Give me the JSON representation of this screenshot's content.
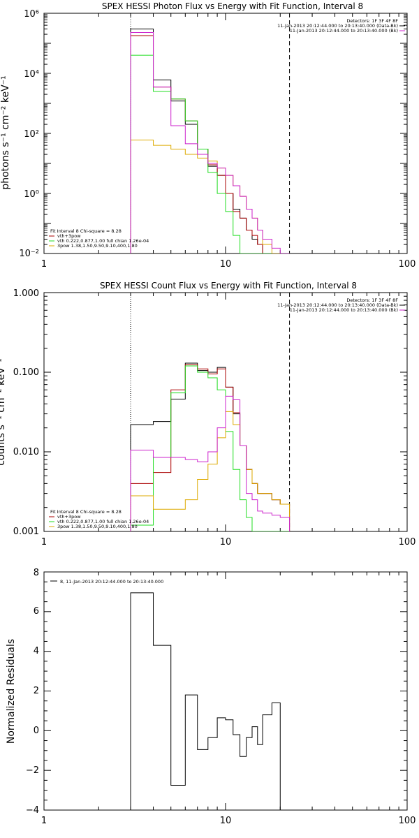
{
  "colors": {
    "data": "#000000",
    "total": "#aa0000",
    "thermal": "#22dd22",
    "powerlaw": "#ddaa00",
    "background": "#cc22cc",
    "axis": "#000000"
  },
  "chart_data": [
    {
      "type": "line",
      "title": "SPEX HESSI Photon Flux vs Energy with Fit Function, Interval 8",
      "xlabel": "",
      "ylabel": "photons s⁻¹ cm⁻² keV⁻¹",
      "xscale": "log",
      "yscale": "log",
      "xlim": [
        1,
        100
      ],
      "ylim": [
        0.01,
        1000000
      ],
      "xticks": [
        "1",
        "10",
        "100"
      ],
      "yticks": [
        "10⁻²",
        "10⁰",
        "10²",
        "10⁴",
        "10⁶"
      ],
      "vlines": [
        {
          "x": 3,
          "style": "dotted"
        },
        {
          "x": 22.5,
          "style": "dashed"
        }
      ],
      "legend_top": {
        "header": "Detectors: 1F 3F 4F 8F",
        "lines": [
          "11-Jan-2013 20:12:44.000 to 20:13:40.000 (Data-Bk)",
          "11-Jan-2013 20:12:44.000 to 20:13:40.000 (Bk)"
        ]
      },
      "legend_bottom": {
        "header": "Fit Interval 8   Chi-square = 8.28",
        "lines": [
          "vth+3pow",
          "vth 0.222,0.877,1.00  full chian 1.26e-04",
          "3pow 1.38,1.50,9.50,9.10,400,1.80"
        ]
      },
      "bin_edges": [
        3,
        3.5,
        4,
        5,
        6,
        7,
        8,
        9,
        10,
        11,
        12,
        13,
        14,
        15,
        16,
        18,
        20,
        22.5
      ],
      "series": [
        {
          "key": "data",
          "values": [
            300000,
            300000,
            6000,
            1200,
            200,
            30,
            8,
            4,
            1,
            0.3,
            0.15,
            0.06,
            0.03,
            0.02,
            0.01,
            0.01,
            0.01
          ]
        },
        {
          "key": "total",
          "values": [
            180000,
            180000,
            3500,
            1400,
            260,
            30,
            9,
            4,
            1,
            0.25,
            0.15,
            0.06,
            0.04,
            0.02,
            0.01,
            0.01,
            0.01
          ]
        },
        {
          "key": "thermal",
          "values": [
            40000,
            40000,
            2500,
            1400,
            260,
            30,
            5,
            1,
            0.25,
            0.04,
            0.01,
            0.01,
            0.01,
            0.01,
            0.01,
            0.01,
            0.01
          ]
        },
        {
          "key": "powerlaw",
          "values": [
            60,
            60,
            40,
            30,
            20,
            15,
            12,
            7,
            4,
            1.8,
            0.8,
            0.3,
            0.15,
            0.06,
            0.02,
            0.01,
            0.01
          ]
        },
        {
          "key": "background",
          "values": [
            230000,
            230000,
            3500,
            180,
            45,
            20,
            10,
            7,
            4,
            1.8,
            0.8,
            0.3,
            0.15,
            0.06,
            0.03,
            0.015,
            0.01
          ]
        }
      ]
    },
    {
      "type": "line",
      "title": "SPEX HESSI Count Flux vs Energy with Fit Function, Interval 8",
      "xlabel": "",
      "ylabel": "counts s⁻¹ cm⁻² keV⁻¹",
      "xscale": "log",
      "yscale": "log",
      "xlim": [
        1,
        100
      ],
      "ylim": [
        0.001,
        1
      ],
      "xticks": [
        "1",
        "10",
        "100"
      ],
      "yticks": [
        "0.001",
        "0.010",
        "0.100",
        "1.000"
      ],
      "vlines": [
        {
          "x": 3,
          "style": "dotted"
        },
        {
          "x": 22.5,
          "style": "dashed"
        }
      ],
      "legend_top": {
        "header": "Detectors: 1F 3F 4F 8F",
        "lines": [
          "11-Jan-2013 20:12:44.000 to 20:13:40.000 (Data-Bk)",
          "11-Jan-2013 20:12:44.000 to 20:13:40.000 (Bk)"
        ]
      },
      "legend_bottom": {
        "header": "Fit Interval 8   Chi-square = 8.28",
        "lines": [
          "vth+3pow",
          "vth 0.222,0.877,1.00  full chian 1.26e-04",
          "3pow 1.38,1.50,9.50,9.10,400,1.80"
        ]
      },
      "bin_edges": [
        3,
        4,
        5,
        6,
        7,
        8,
        9,
        10,
        11,
        12,
        13,
        14,
        15,
        16,
        18,
        20,
        22.5
      ],
      "series": [
        {
          "key": "data",
          "values": [
            0.022,
            0.024,
            0.046,
            0.13,
            0.105,
            0.1,
            0.115,
            0.065,
            0.03,
            0.012,
            0.006,
            0.004,
            0.003,
            0.003,
            0.0025,
            0.0022
          ]
        },
        {
          "key": "total",
          "values": [
            0.004,
            0.0055,
            0.06,
            0.125,
            0.11,
            0.095,
            0.11,
            0.065,
            0.031,
            0.012,
            0.006,
            0.004,
            0.003,
            0.003,
            0.0025,
            0.0022
          ]
        },
        {
          "key": "thermal",
          "values": [
            0.0012,
            0.0085,
            0.055,
            0.12,
            0.1,
            0.085,
            0.06,
            0.018,
            0.006,
            0.0025,
            0.0015,
            0.001,
            0.001,
            0.001,
            0.001,
            0.001
          ]
        },
        {
          "key": "powerlaw",
          "values": [
            0.0028,
            0.0019,
            0.0019,
            0.0025,
            0.0045,
            0.007,
            0.015,
            0.032,
            0.022,
            0.012,
            0.006,
            0.004,
            0.003,
            0.003,
            0.0025,
            0.0022
          ]
        },
        {
          "key": "background",
          "values": [
            0.0105,
            0.0085,
            0.0085,
            0.008,
            0.0075,
            0.01,
            0.02,
            0.05,
            0.045,
            0.012,
            0.003,
            0.0025,
            0.0018,
            0.0017,
            0.0016,
            0.0015
          ]
        }
      ]
    },
    {
      "type": "line",
      "title": "",
      "xlabel": "",
      "ylabel": "Normalized Residuals",
      "xscale": "log",
      "yscale": "linear",
      "xlim": [
        1,
        100
      ],
      "ylim": [
        -4,
        8
      ],
      "xticks": [
        "1",
        "10",
        "100"
      ],
      "yticks": [
        "−4",
        "−2",
        "0",
        "2",
        "4",
        "6",
        "8"
      ],
      "legend": "8, 11-Jan-2013 20:12:44.000 to 20:13:40.000",
      "bin_edges": [
        3,
        4,
        5,
        6,
        7,
        8,
        9,
        10,
        11,
        12,
        13,
        14,
        15,
        16,
        18,
        20,
        22.5
      ],
      "series": [
        {
          "key": "data",
          "values": [
            6.95,
            4.3,
            -2.75,
            1.8,
            -0.95,
            -0.35,
            0.65,
            0.55,
            -0.2,
            -1.3,
            -0.35,
            0.2,
            -0.7,
            0.8,
            1.4,
            -4.0
          ]
        }
      ]
    }
  ]
}
